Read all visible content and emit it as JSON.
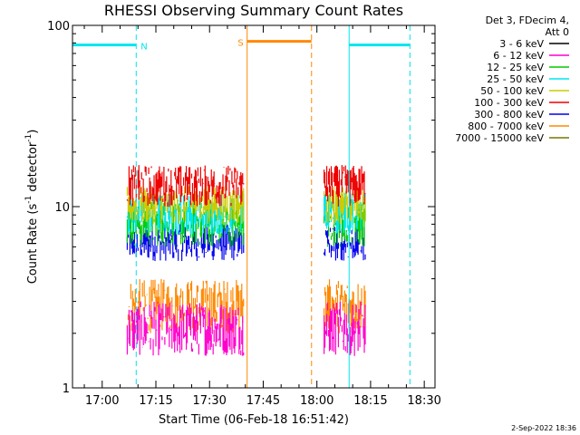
{
  "chart_data": {
    "type": "line",
    "title": "RHESSI Observing Summary Count Rates",
    "xlabel": "Start Time (06-Feb-18 16:51:42)",
    "ylabel_main": "Count Rate (s",
    "ylabel_sup1": "-1",
    "ylabel_mid": " detector",
    "ylabel_sup2": "-1",
    "ylabel_end": ")",
    "y_scale": "log",
    "ylim": [
      1,
      100
    ],
    "xlim": [
      "16:51:42",
      "18:33:00"
    ],
    "x_ticks": [
      "17:00",
      "17:15",
      "17:30",
      "17:45",
      "18:00",
      "18:15",
      "18:30"
    ],
    "y_ticks": [
      "1",
      "10",
      "100"
    ],
    "legend": {
      "position": "top-right",
      "header_line1": "Det 3, FDecim 4,",
      "header_line2": "Att 0",
      "series": [
        {
          "name": "3 - 6 keV",
          "color": "#000000"
        },
        {
          "name": "6 - 12 keV",
          "color": "#ff00cc"
        },
        {
          "name": "12 - 25 keV",
          "color": "#00cc00"
        },
        {
          "name": "25 - 50 keV",
          "color": "#00e5ee"
        },
        {
          "name": "50 - 100 keV",
          "color": "#cccc00"
        },
        {
          "name": "100 - 300 keV",
          "color": "#ee0000"
        },
        {
          "name": "300 - 800 keV",
          "color": "#0000ee"
        },
        {
          "name": "800 - 7000 keV",
          "color": "#ff8800"
        },
        {
          "name": "7000 - 15000 keV",
          "color": "#777700"
        }
      ]
    },
    "data_intervals": [
      {
        "start": "17:07:00",
        "end": "17:39:30"
      },
      {
        "start": "18:02:00",
        "end": "18:13:30"
      }
    ],
    "band_ranges": [
      {
        "name": "300 - 800 keV",
        "low": 5,
        "high": 8
      },
      {
        "name": "800 - 7000 keV",
        "low": 2,
        "high": 4
      },
      {
        "name": "6 - 12 keV",
        "low": 1.5,
        "high": 3
      },
      {
        "name": "12 - 25 keV",
        "low": 6,
        "high": 11
      },
      {
        "name": "25 - 50 keV",
        "low": 7,
        "high": 12
      },
      {
        "name": "50 - 100 keV",
        "low": 8,
        "high": 13
      },
      {
        "name": "100 - 300 keV",
        "low": 10,
        "high": 17
      }
    ],
    "annotations": {
      "night": {
        "label": "N",
        "color": "#00e5ee",
        "periods": [
          {
            "start": "16:51:42",
            "end": "17:09:30"
          },
          {
            "start": "18:09:00",
            "end": "18:26:00"
          }
        ]
      },
      "saa": {
        "label": "S",
        "color": "#ff8800",
        "periods": [
          {
            "start": "17:40:30",
            "end": "17:58:30"
          }
        ]
      },
      "level": 78
    },
    "timestamp": "2-Sep-2022 18:36"
  }
}
